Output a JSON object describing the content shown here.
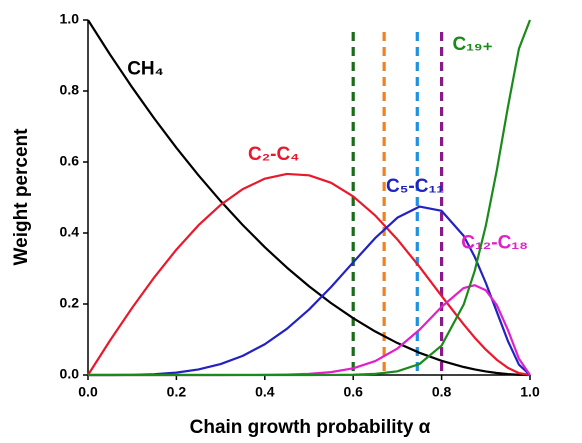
{
  "chart_data": {
    "type": "line",
    "xlabel": "Chain growth probability α",
    "ylabel": "Weight percent",
    "x": [
      0,
      0.05,
      0.1,
      0.15,
      0.2,
      0.25,
      0.3,
      0.35,
      0.4,
      0.45,
      0.5,
      0.55,
      0.6,
      0.65,
      0.7,
      0.75,
      0.8,
      0.85,
      0.875,
      0.9,
      0.925,
      0.95,
      0.975,
      1
    ],
    "series": [
      {
        "name": "CH₄",
        "color": "#000000",
        "values": [
          1,
          0.9025,
          0.81,
          0.7225,
          0.64,
          0.5625,
          0.49,
          0.4225,
          0.36,
          0.3025,
          0.25,
          0.2025,
          0.16,
          0.1225,
          0.09,
          0.0625,
          0.04,
          0.0225,
          0.0156,
          0.01,
          0.0056,
          0.0025,
          0.0006,
          0
        ]
      },
      {
        "name": "C₂-C₄",
        "color": "#e8192c",
        "values": [
          0,
          0.0975,
          0.1895,
          0.2753,
          0.3533,
          0.4219,
          0.4792,
          0.5235,
          0.553,
          0.5663,
          0.5625,
          0.5413,
          0.503,
          0.4491,
          0.3818,
          0.3047,
          0.2227,
          0.1423,
          0.1051,
          0.0715,
          0.0427,
          0.0201,
          0.0053,
          0
        ]
      },
      {
        "name": "C₅-C₁₁",
        "color": "#2222c0",
        "values": [
          0,
          0,
          0.0005,
          0.0022,
          0.0067,
          0.0156,
          0.0308,
          0.0539,
          0.0867,
          0.1301,
          0.1843,
          0.2479,
          0.3174,
          0.386,
          0.4432,
          0.4744,
          0.4624,
          0.3918,
          0.3326,
          0.2595,
          0.1776,
          0.0958,
          0.029,
          0
        ]
      },
      {
        "name": "C₁₂-C₁₈",
        "color": "#e020c8",
        "values": [
          0,
          0,
          0,
          0,
          0,
          0,
          0,
          0.0001,
          0.0003,
          0.0011,
          0.0031,
          0.0081,
          0.0188,
          0.0393,
          0.0746,
          0.1274,
          0.192,
          0.245,
          0.2529,
          0.2387,
          0.1966,
          0.1269,
          0.0458,
          0
        ]
      },
      {
        "name": "C₁₉₊",
        "color": "#1a8a1a",
        "values": [
          0,
          0,
          0,
          0,
          0,
          0,
          0,
          0,
          0,
          0,
          0,
          0.0002,
          0.0008,
          0.0031,
          0.0104,
          0.031,
          0.0829,
          0.1985,
          0.2938,
          0.4203,
          0.5776,
          0.7547,
          0.9193,
          1
        ]
      }
    ],
    "vlines": [
      {
        "x": 0.6,
        "color": "#1a6b1a"
      },
      {
        "x": 0.67,
        "color": "#f08020"
      },
      {
        "x": 0.745,
        "color": "#2090e0"
      },
      {
        "x": 0.8,
        "color": "#8a1a8a"
      }
    ],
    "xlim": [
      0,
      1
    ],
    "ylim": [
      0,
      1
    ],
    "xticks": [
      {
        "value": 0,
        "label": "0.0"
      },
      0.2,
      0.4,
      0.6,
      0.8,
      {
        "value": 1,
        "label": "1.0"
      }
    ],
    "yticks": [
      {
        "value": 0,
        "label": "0.0"
      },
      0.2,
      0.4,
      0.6,
      0.8,
      {
        "value": 1,
        "label": "1.0"
      }
    ]
  }
}
